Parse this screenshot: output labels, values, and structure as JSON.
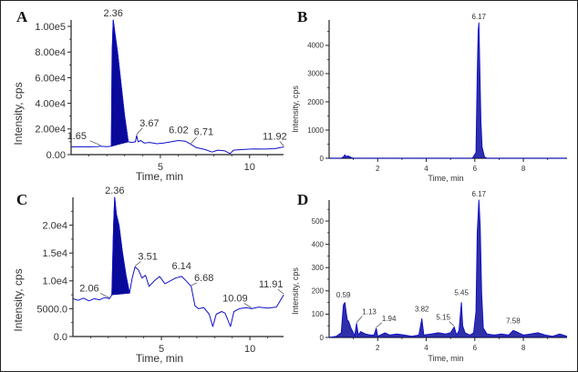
{
  "chart_data": [
    {
      "panel": "A",
      "type": "line",
      "xlabel": "Time, min",
      "ylabel": "Intensity, cps",
      "xlim": [
        0,
        11.9
      ],
      "ylim": [
        0,
        105000
      ],
      "xticks": [
        5,
        10
      ],
      "xtick_labels": [
        "5",
        "10"
      ],
      "yticks": [
        0,
        20000,
        40000,
        60000,
        80000,
        100000
      ],
      "ytick_labels": [
        "0.00",
        "2.00e4",
        "4.00e4",
        "6.00e4",
        "8.00e4",
        "1.00e5"
      ],
      "filled_peak": {
        "start": 2.25,
        "end": 3.2,
        "apex": 2.36
      },
      "series": [
        {
          "name": "trace",
          "x": [
            0.0,
            0.5,
            1.0,
            1.5,
            1.65,
            2.0,
            2.25,
            2.3,
            2.36,
            2.45,
            2.6,
            2.8,
            3.0,
            3.2,
            3.4,
            3.6,
            3.67,
            3.75,
            3.9,
            4.1,
            4.4,
            4.8,
            5.2,
            5.6,
            6.02,
            6.4,
            6.71,
            7.0,
            7.5,
            7.9,
            8.2,
            8.6,
            8.9,
            9.1,
            9.6,
            10.2,
            10.8,
            11.4,
            11.92
          ],
          "y": [
            6000,
            6200,
            6000,
            6300,
            6500,
            6200,
            6500,
            80000,
            105000,
            95000,
            80000,
            55000,
            30000,
            10000,
            9500,
            10000,
            15000,
            10000,
            11000,
            9000,
            9500,
            8500,
            9000,
            10000,
            11000,
            10500,
            8000,
            5500,
            4000,
            2000,
            3500,
            3000,
            800,
            3500,
            4000,
            4500,
            4300,
            4600,
            6000
          ]
        }
      ],
      "annotations": [
        {
          "x": 2.36,
          "label": "2.36"
        },
        {
          "x": 1.65,
          "label": "1.65"
        },
        {
          "x": 3.67,
          "label": "3.67"
        },
        {
          "x": 6.02,
          "label": "6.02"
        },
        {
          "x": 6.71,
          "label": "6.71"
        },
        {
          "x": 11.92,
          "label": "11.92"
        }
      ]
    },
    {
      "panel": "B",
      "type": "line",
      "xlabel": "Time, min",
      "ylabel": "Intensity, cps",
      "xlim": [
        0,
        9.8
      ],
      "ylim": [
        0,
        4900
      ],
      "xticks": [
        2,
        4,
        6,
        8
      ],
      "xtick_labels": [
        "2",
        "4",
        "6",
        "8"
      ],
      "yticks": [
        0,
        1000,
        2000,
        3000,
        4000
      ],
      "ytick_labels": [
        "0",
        "1000",
        "2000",
        "3000",
        "4000"
      ],
      "series": [
        {
          "name": "trace",
          "x": [
            0.0,
            0.5,
            0.6,
            0.65,
            0.7,
            0.8,
            0.9,
            1.0,
            5.9,
            6.05,
            6.1,
            6.14,
            6.17,
            6.2,
            6.25,
            6.3,
            6.4,
            6.5,
            9.8
          ],
          "y": [
            0,
            0,
            60,
            120,
            60,
            80,
            30,
            0,
            0,
            200,
            3000,
            4500,
            4800,
            3500,
            1300,
            400,
            50,
            0,
            0
          ]
        }
      ],
      "annotations": [
        {
          "x": 6.17,
          "label": "6.17"
        }
      ]
    },
    {
      "panel": "C",
      "type": "line",
      "xlabel": "Time, min",
      "ylabel": "Intensity, cps",
      "xlim": [
        0,
        11.9
      ],
      "ylim": [
        0,
        25000
      ],
      "xticks": [
        5,
        10
      ],
      "xtick_labels": [
        "5",
        "10"
      ],
      "yticks": [
        0,
        5000,
        10000,
        15000,
        20000
      ],
      "ytick_labels": [
        "0.0",
        "5000.0",
        "1.0e4",
        "1.5e4",
        "2.0e4"
      ],
      "filled_peak": {
        "start": 2.1,
        "end": 3.2,
        "apex": 2.36
      },
      "series": [
        {
          "name": "trace",
          "x": [
            0.0,
            0.3,
            0.6,
            0.9,
            1.2,
            1.5,
            1.8,
            2.06,
            2.2,
            2.3,
            2.36,
            2.45,
            2.6,
            2.8,
            3.0,
            3.2,
            3.35,
            3.51,
            3.7,
            3.9,
            4.1,
            4.3,
            4.6,
            4.9,
            5.2,
            5.5,
            5.8,
            6.14,
            6.4,
            6.68,
            6.9,
            7.1,
            7.4,
            7.7,
            7.9,
            8.1,
            8.4,
            8.6,
            8.9,
            9.1,
            9.4,
            9.8,
            10.09,
            10.5,
            11.0,
            11.5,
            11.91
          ],
          "y": [
            6800,
            6500,
            6900,
            6400,
            6800,
            6600,
            7000,
            6800,
            7500,
            20000,
            25000,
            22000,
            20000,
            15000,
            11000,
            7800,
            10500,
            12500,
            12000,
            10500,
            11000,
            9000,
            10000,
            10800,
            9500,
            10000,
            10500,
            10800,
            10000,
            9000,
            5500,
            5000,
            5200,
            4000,
            1800,
            4000,
            4500,
            4200,
            1800,
            4500,
            5000,
            5200,
            5000,
            5300,
            5100,
            5300,
            7500
          ]
        }
      ],
      "annotations": [
        {
          "x": 2.36,
          "label": "2.36"
        },
        {
          "x": 2.06,
          "label": "2.06"
        },
        {
          "x": 3.51,
          "label": "3.51"
        },
        {
          "x": 6.14,
          "label": "6.14"
        },
        {
          "x": 6.68,
          "label": "6.68"
        },
        {
          "x": 10.09,
          "label": "10.09"
        },
        {
          "x": 11.91,
          "label": "11.91"
        }
      ]
    },
    {
      "panel": "D",
      "type": "line",
      "xlabel": "Time, min",
      "ylabel": "Intensity, cps",
      "xlim": [
        0,
        9.8
      ],
      "ylim": [
        0,
        590
      ],
      "xticks": [
        2,
        4,
        6,
        8
      ],
      "xtick_labels": [
        "2",
        "4",
        "6",
        "8"
      ],
      "yticks": [
        0,
        100,
        200,
        300,
        400,
        500
      ],
      "ytick_labels": [
        "0",
        "100",
        "200",
        "300",
        "400",
        "500"
      ],
      "series": [
        {
          "name": "trace",
          "x": [
            0.0,
            0.3,
            0.5,
            0.59,
            0.65,
            0.7,
            0.75,
            0.8,
            0.9,
            1.0,
            1.05,
            1.13,
            1.2,
            1.3,
            1.5,
            1.7,
            1.85,
            1.94,
            2.0,
            2.3,
            2.5,
            2.8,
            3.1,
            3.4,
            3.7,
            3.82,
            3.9,
            4.2,
            4.5,
            4.8,
            5.0,
            5.15,
            5.25,
            5.35,
            5.45,
            5.5,
            5.6,
            5.8,
            5.95,
            6.05,
            6.1,
            6.17,
            6.22,
            6.28,
            6.35,
            6.5,
            6.8,
            7.1,
            7.4,
            7.58,
            7.7,
            8.0,
            8.3,
            8.6,
            8.9,
            9.2,
            9.5,
            9.8
          ],
          "y": [
            0,
            5,
            20,
            140,
            150,
            110,
            75,
            70,
            40,
            20,
            5,
            60,
            10,
            25,
            15,
            10,
            10,
            40,
            5,
            20,
            10,
            15,
            10,
            5,
            10,
            80,
            10,
            15,
            20,
            15,
            20,
            45,
            10,
            30,
            150,
            50,
            20,
            10,
            20,
            110,
            450,
            590,
            480,
            190,
            40,
            15,
            10,
            15,
            10,
            30,
            25,
            10,
            15,
            20,
            10,
            5,
            15,
            5
          ]
        }
      ],
      "annotations": [
        {
          "x": 6.17,
          "label": "6.17"
        },
        {
          "x": 0.59,
          "label": "0.59"
        },
        {
          "x": 1.13,
          "label": "1.13"
        },
        {
          "x": 1.94,
          "label": "1.94"
        },
        {
          "x": 3.82,
          "label": "3.82"
        },
        {
          "x": 5.15,
          "label": "5.15"
        },
        {
          "x": 5.45,
          "label": "5.45"
        },
        {
          "x": 7.58,
          "label": "7.58"
        }
      ]
    }
  ],
  "colors": {
    "trace": "#1010c8",
    "fill": "#0a0a9a",
    "axis": "#222222",
    "text": "#333333",
    "xlabel_text": "#4a1a3a"
  }
}
